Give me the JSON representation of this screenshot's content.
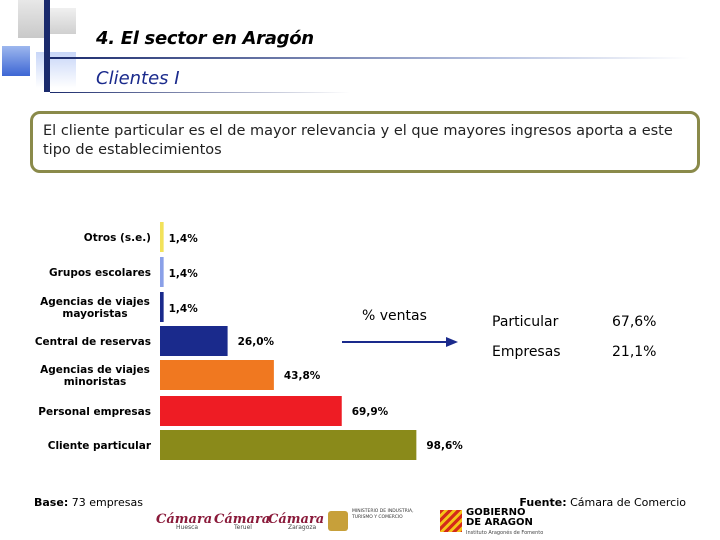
{
  "header": {
    "section_title": "4. El sector en Aragón",
    "subtitle": "Clientes I"
  },
  "message": {
    "prefix": "El ",
    "highlight": "cliente particular",
    "suffix": " es el de mayor relevancia y el que mayores ingresos aporta a este tipo de establecimientos"
  },
  "chart_data": {
    "type": "bar",
    "orientation": "horizontal",
    "categories": [
      "Otros (s.e.)",
      "Grupos escolares",
      "Agencias de viajes mayoristas",
      "Central de reservas",
      "Agencias de viajes minoristas",
      "Personal empresas",
      "Cliente particular"
    ],
    "category_lines": [
      [
        "Otros (s.e.)"
      ],
      [
        "Grupos escolares"
      ],
      [
        "Agencias de viajes",
        "mayoristas"
      ],
      [
        "Central de reservas"
      ],
      [
        "Agencias de viajes",
        "minoristas"
      ],
      [
        "Personal empresas"
      ],
      [
        "Cliente particular"
      ]
    ],
    "values": [
      1.4,
      1.4,
      1.4,
      26.0,
      43.8,
      69.9,
      98.6
    ],
    "value_labels": [
      "1,4%",
      "1,4%",
      "1,4%",
      "26,0%",
      "43,8%",
      "69,9%",
      "98,6%"
    ],
    "colors": [
      "#f2e25a",
      "#8aa0e8",
      "#1a2a8c",
      "#1a2a8c",
      "#f07820",
      "#ee1c24",
      "#8a8a1a"
    ],
    "xlim": [
      0,
      100
    ],
    "xlabel": "",
    "ylabel": ""
  },
  "ventas": {
    "label": "% ventas",
    "rows": [
      {
        "name": "Particular",
        "value": "67,6%"
      },
      {
        "name": "Empresas",
        "value": "21,1%"
      }
    ]
  },
  "footer": {
    "base_label": "Base:",
    "base_value": " 73 empresas",
    "source_label": "Fuente:",
    "source_value": " Cámara de Comercio"
  },
  "logos": {
    "camara": [
      "Cámara",
      "Cámara",
      "Cámara"
    ],
    "camara_sub": [
      "Huesca",
      "Teruel",
      "Zaragoza"
    ],
    "ministerio": "MINISTERIO DE INDUSTRIA, TURISMO Y COMERCIO",
    "gobierno": [
      "GOBIERNO",
      "DE ARAGON"
    ],
    "gobierno_sub": "Instituto Aragonés de Fomento"
  }
}
